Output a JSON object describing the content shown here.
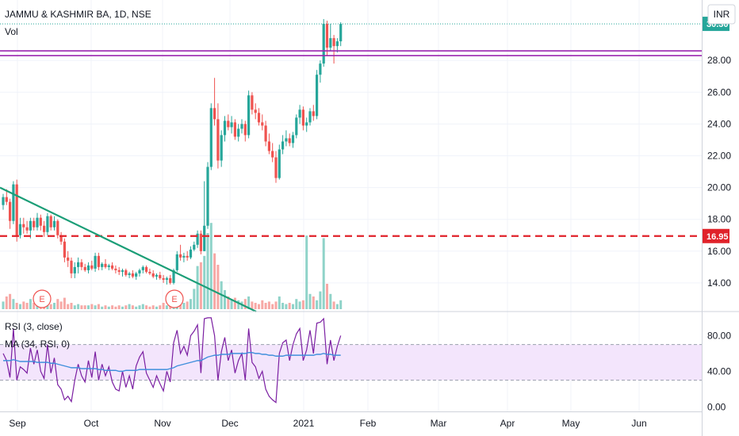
{
  "header": {
    "symbol": "JAMMU & KASHMIR BA, 1D, NSE",
    "volume_label": "Vol",
    "currency_button": "INR",
    "rsi_label": "RSI (3, close)",
    "ma_label": "MA (34, RSI, 0)"
  },
  "colors": {
    "up": "#26a69a",
    "down": "#ef5350",
    "volume_up": "#8fd3c9",
    "volume_down": "#f7a8a5",
    "trendline": "#1b9e77",
    "support_dash": "#e0222a",
    "resistance_lines": "#9c27b0",
    "rsi_line": "#7b1fa2",
    "ma_line": "#3f8fdc",
    "rsi_band": "#f3e5fc",
    "last_price_badge": "#26a69a"
  },
  "chart_data": {
    "type": "candlestick",
    "interval": "1D",
    "x_ticks": [
      "Sep",
      "Oct",
      "Nov",
      "Dec",
      "2021",
      "Feb",
      "Mar",
      "Apr",
      "May",
      "Jun"
    ],
    "price_axis": {
      "ticks": [
        "28.00",
        "26.00",
        "24.00",
        "22.00",
        "20.00",
        "18.00",
        "16.00",
        "14.00"
      ],
      "ylim": [
        12.2,
        31.8
      ]
    },
    "rsi_axis": {
      "ticks": [
        "80.00",
        "40.00",
        "0.00"
      ],
      "ylim": [
        -5,
        107
      ],
      "band": [
        30,
        70
      ]
    },
    "last_price": "30.30",
    "horizontal_level": "16.95",
    "resistance_levels": [
      28.6,
      28.3
    ],
    "earnings_markers": [
      "E",
      "E"
    ],
    "candles_approx": [
      [
        18.9,
        19.6,
        18.6,
        19.4
      ],
      [
        19.4,
        19.9,
        18.9,
        19.1
      ],
      [
        19.1,
        19.3,
        17.4,
        17.9
      ],
      [
        17.9,
        20.4,
        17.7,
        20.2
      ],
      [
        20.2,
        20.5,
        16.6,
        17.0
      ],
      [
        17.0,
        18.1,
        16.8,
        17.7
      ],
      [
        17.7,
        18.1,
        17.1,
        17.5
      ],
      [
        17.5,
        17.9,
        17.1,
        17.3
      ],
      [
        17.3,
        18.1,
        16.8,
        17.9
      ],
      [
        17.9,
        18.1,
        17.3,
        17.5
      ],
      [
        17.5,
        18.4,
        17.3,
        18.1
      ],
      [
        18.1,
        18.3,
        17.3,
        17.6
      ],
      [
        17.6,
        17.9,
        16.9,
        17.2
      ],
      [
        17.2,
        18.4,
        17.0,
        18.2
      ],
      [
        18.2,
        18.3,
        17.3,
        17.5
      ],
      [
        17.5,
        18.2,
        17.3,
        17.9
      ],
      [
        17.9,
        18.0,
        16.8,
        17.0
      ],
      [
        17.0,
        17.2,
        16.4,
        16.6
      ],
      [
        16.6,
        16.8,
        15.3,
        15.6
      ],
      [
        15.6,
        16.0,
        15.0,
        15.4
      ],
      [
        15.4,
        15.6,
        14.3,
        14.6
      ],
      [
        14.6,
        15.3,
        14.3,
        15.0
      ],
      [
        15.0,
        15.6,
        14.6,
        15.3
      ],
      [
        15.3,
        15.5,
        14.8,
        15.0
      ],
      [
        15.0,
        15.2,
        14.7,
        14.8
      ],
      [
        14.8,
        15.3,
        14.6,
        15.1
      ],
      [
        15.1,
        15.4,
        14.8,
        14.9
      ],
      [
        14.9,
        15.9,
        14.7,
        15.7
      ],
      [
        15.7,
        15.9,
        14.8,
        15.0
      ],
      [
        15.0,
        15.3,
        14.8,
        15.2
      ],
      [
        15.2,
        15.5,
        14.9,
        15.0
      ],
      [
        15.0,
        15.2,
        14.8,
        15.1
      ],
      [
        15.1,
        15.3,
        14.8,
        14.9
      ],
      [
        14.9,
        15.1,
        14.6,
        14.8
      ],
      [
        14.8,
        15.0,
        14.5,
        14.7
      ],
      [
        14.7,
        14.9,
        14.4,
        14.8
      ],
      [
        14.8,
        14.9,
        14.4,
        14.5
      ],
      [
        14.5,
        14.7,
        14.3,
        14.6
      ],
      [
        14.6,
        14.8,
        14.3,
        14.4
      ],
      [
        14.4,
        14.7,
        14.2,
        14.6
      ],
      [
        14.6,
        14.9,
        14.4,
        14.8
      ],
      [
        14.8,
        15.1,
        14.6,
        15.0
      ],
      [
        15.0,
        15.1,
        14.6,
        14.7
      ],
      [
        14.7,
        14.9,
        14.5,
        14.6
      ],
      [
        14.6,
        14.8,
        14.3,
        14.4
      ],
      [
        14.4,
        14.6,
        14.2,
        14.5
      ],
      [
        14.5,
        14.7,
        14.2,
        14.3
      ],
      [
        14.3,
        14.5,
        14.0,
        14.2
      ],
      [
        14.2,
        14.4,
        13.9,
        14.3
      ],
      [
        14.3,
        14.5,
        13.9,
        14.0
      ],
      [
        14.0,
        14.9,
        13.9,
        14.8
      ],
      [
        14.8,
        16.0,
        14.7,
        15.8
      ],
      [
        15.8,
        16.4,
        15.4,
        15.6
      ],
      [
        15.6,
        15.9,
        15.3,
        15.7
      ],
      [
        15.7,
        16.0,
        15.4,
        15.6
      ],
      [
        15.6,
        16.3,
        15.5,
        16.1
      ],
      [
        16.1,
        16.6,
        16.0,
        16.4
      ],
      [
        16.4,
        17.3,
        16.2,
        17.1
      ],
      [
        17.1,
        17.3,
        15.8,
        16.0
      ],
      [
        16.0,
        20.4,
        16.0,
        17.6
      ],
      [
        17.6,
        21.6,
        17.4,
        21.3
      ],
      [
        21.3,
        25.3,
        21.1,
        25.0
      ],
      [
        25.0,
        26.9,
        23.9,
        24.3
      ],
      [
        24.3,
        25.3,
        21.2,
        21.7
      ],
      [
        21.7,
        23.6,
        21.3,
        23.3
      ],
      [
        23.3,
        24.5,
        22.9,
        24.2
      ],
      [
        24.2,
        24.6,
        23.6,
        23.8
      ],
      [
        23.8,
        24.5,
        23.4,
        24.1
      ],
      [
        24.1,
        24.3,
        23.0,
        23.2
      ],
      [
        23.2,
        24.0,
        22.9,
        23.7
      ],
      [
        23.7,
        24.3,
        23.4,
        24.0
      ],
      [
        24.0,
        24.2,
        22.9,
        23.3
      ],
      [
        23.3,
        26.1,
        23.1,
        25.8
      ],
      [
        25.8,
        26.0,
        24.6,
        24.9
      ],
      [
        24.9,
        25.3,
        24.3,
        24.7
      ],
      [
        24.7,
        25.0,
        23.9,
        24.1
      ],
      [
        24.1,
        24.6,
        23.6,
        23.9
      ],
      [
        23.9,
        24.2,
        22.6,
        22.9
      ],
      [
        22.9,
        23.4,
        22.1,
        22.3
      ],
      [
        22.3,
        22.8,
        21.6,
        21.9
      ],
      [
        21.9,
        22.3,
        20.3,
        20.6
      ],
      [
        20.6,
        22.7,
        20.5,
        22.4
      ],
      [
        22.4,
        23.3,
        22.1,
        22.9
      ],
      [
        22.9,
        23.6,
        22.6,
        23.1
      ],
      [
        23.1,
        23.4,
        22.6,
        22.8
      ],
      [
        22.8,
        23.5,
        22.5,
        23.3
      ],
      [
        23.3,
        24.6,
        23.1,
        24.4
      ],
      [
        24.4,
        25.2,
        24.0,
        24.9
      ],
      [
        24.9,
        25.1,
        23.6,
        23.9
      ],
      [
        23.9,
        24.4,
        23.5,
        24.1
      ],
      [
        24.1,
        25.0,
        23.9,
        24.8
      ],
      [
        24.8,
        25.2,
        24.2,
        24.5
      ],
      [
        24.5,
        27.4,
        24.3,
        27.1
      ],
      [
        27.1,
        28.0,
        26.6,
        27.8
      ],
      [
        27.8,
        30.6,
        27.6,
        30.3
      ],
      [
        30.3,
        30.5,
        28.3,
        28.8
      ],
      [
        28.8,
        30.3,
        28.6,
        29.4
      ],
      [
        29.4,
        29.6,
        27.8,
        28.9
      ],
      [
        28.9,
        29.4,
        28.5,
        29.2
      ],
      [
        29.2,
        30.4,
        28.9,
        30.3
      ]
    ],
    "volume_ratio_approx": [
      0.06,
      0.1,
      0.12,
      0.08,
      0.05,
      0.04,
      0.06,
      0.05,
      0.08,
      0.05,
      0.04,
      0.05,
      0.06,
      0.07,
      0.04,
      0.05,
      0.08,
      0.06,
      0.09,
      0.04,
      0.05,
      0.03,
      0.04,
      0.03,
      0.03,
      0.03,
      0.04,
      0.03,
      0.04,
      0.02,
      0.03,
      0.02,
      0.03,
      0.02,
      0.03,
      0.02,
      0.03,
      0.04,
      0.03,
      0.02,
      0.03,
      0.04,
      0.03,
      0.02,
      0.03,
      0.02,
      0.03,
      0.05,
      0.03,
      0.06,
      0.08,
      0.05,
      0.04,
      0.05,
      0.06,
      0.08,
      0.16,
      0.34,
      0.37,
      0.42,
      0.6,
      0.68,
      0.44,
      0.35,
      0.22,
      0.15,
      0.1,
      0.08,
      0.09,
      0.07,
      0.06,
      0.08,
      0.1,
      0.06,
      0.05,
      0.04,
      0.07,
      0.05,
      0.06,
      0.04,
      0.06,
      0.1,
      0.05,
      0.04,
      0.05,
      0.04,
      0.08,
      0.06,
      0.07,
      0.58,
      0.12,
      0.1,
      0.07,
      0.14,
      0.56,
      0.2,
      0.12,
      0.06,
      0.04,
      0.07
    ],
    "rsi_approx": [
      60,
      52,
      33,
      88,
      30,
      45,
      42,
      38,
      66,
      48,
      64,
      40,
      32,
      70,
      38,
      55,
      25,
      20,
      8,
      12,
      6,
      30,
      48,
      35,
      28,
      52,
      33,
      62,
      30,
      48,
      35,
      45,
      28,
      20,
      18,
      40,
      22,
      35,
      20,
      46,
      56,
      62,
      38,
      30,
      22,
      35,
      26,
      18,
      40,
      28,
      72,
      86,
      60,
      68,
      58,
      80,
      85,
      92,
      38,
      99,
      100,
      100,
      80,
      30,
      62,
      78,
      52,
      64,
      38,
      52,
      60,
      30,
      88,
      50,
      45,
      32,
      40,
      20,
      12,
      8,
      5,
      60,
      72,
      75,
      52,
      70,
      82,
      88,
      52,
      64,
      86,
      60,
      94,
      95,
      99,
      48,
      75,
      52,
      68,
      80
    ],
    "ma_approx": [
      52,
      52,
      52,
      53,
      52,
      51,
      51,
      51,
      51,
      51,
      50,
      50,
      50,
      50,
      49,
      49,
      48,
      47,
      46,
      45,
      44,
      44,
      44,
      43,
      43,
      43,
      43,
      43,
      42,
      42,
      41,
      41,
      41,
      41,
      40,
      40,
      41,
      41,
      41,
      41,
      42,
      42,
      42,
      42,
      42,
      42,
      42,
      42,
      42,
      43,
      44,
      46,
      47,
      48,
      49,
      50,
      51,
      52,
      52,
      54,
      56,
      57,
      58,
      58,
      59,
      59,
      59,
      60,
      60,
      60,
      60,
      60,
      61,
      61,
      60,
      60,
      59,
      59,
      58,
      58,
      57,
      57,
      57,
      58,
      58,
      58,
      58,
      58,
      58,
      58,
      58,
      58,
      59,
      59,
      60,
      59,
      59,
      58,
      58,
      58
    ],
    "trendline": {
      "from": [
        "left edge",
        20.0
      ],
      "to": [
        "Dec",
        12.2
      ]
    }
  }
}
